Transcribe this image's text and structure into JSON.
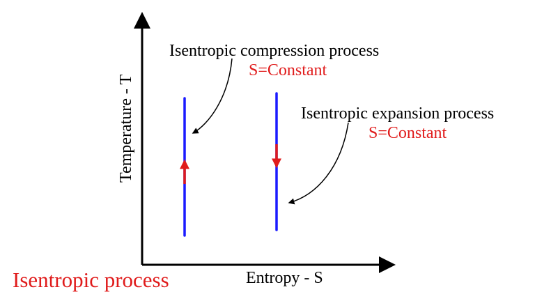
{
  "title": "Isentropic process",
  "axes": {
    "x_label": "Entropy - S",
    "y_label": "Temperature - T"
  },
  "annotations": [
    {
      "label": "Isentropic compression process",
      "sub": "S=Constant",
      "direction": "up"
    },
    {
      "label": "Isentropic expansion process",
      "sub": "S=Constant",
      "direction": "down"
    }
  ],
  "colors": {
    "line": "#1a1aff",
    "arrow": "#e01b1b",
    "accent_text": "#e01b1b",
    "axis": "#000000"
  }
}
